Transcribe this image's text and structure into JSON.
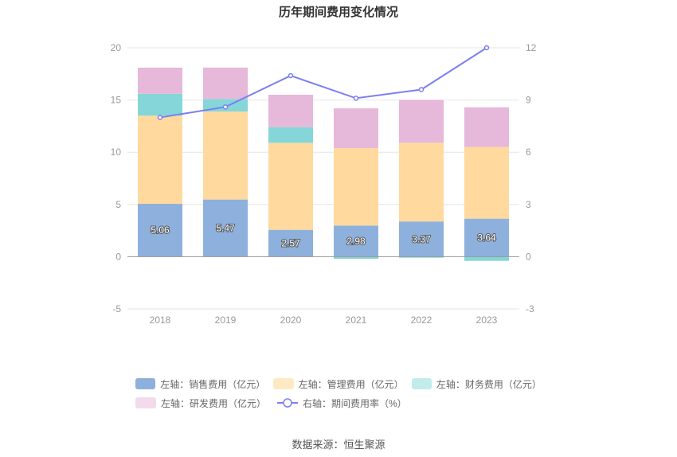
{
  "chart_data": {
    "type": "bar",
    "title": "历年期间费用变化情况",
    "categories": [
      "2018",
      "2019",
      "2020",
      "2021",
      "2022",
      "2023"
    ],
    "left_axis": {
      "ylim": [
        -5,
        20
      ],
      "ticks": [
        "-5",
        "0",
        "5",
        "10",
        "15",
        "20"
      ]
    },
    "right_axis": {
      "ylim": [
        -3,
        12
      ],
      "ticks": [
        "-3",
        "0",
        "3",
        "6",
        "9",
        "12"
      ]
    },
    "series": [
      {
        "name": "左轴：销售费用（亿元）",
        "axis": "left",
        "color": "#8eb0dd",
        "values": [
          5.06,
          5.47,
          2.57,
          2.98,
          3.37,
          3.64
        ],
        "labels": [
          "5.06",
          "5.47",
          "2.57",
          "2.98",
          "3.37",
          "3.64"
        ]
      },
      {
        "name": "左轴：管理费用（亿元）",
        "axis": "left",
        "color": "#ffd99e",
        "values": [
          8.44,
          8.43,
          8.33,
          7.42,
          7.53,
          6.86
        ]
      },
      {
        "name": "左轴：财务费用（亿元）",
        "axis": "left",
        "color": "#85d6d8",
        "values": [
          2.1,
          1.2,
          1.5,
          -0.2,
          -0.1,
          -0.4
        ]
      },
      {
        "name": "左轴：研发费用（亿元）",
        "axis": "left",
        "color": "#e6b8d9",
        "values": [
          2.5,
          3.0,
          3.1,
          3.8,
          4.1,
          3.8
        ]
      },
      {
        "name": "右轴：期间费用率（%）",
        "axis": "right",
        "type": "line",
        "color": "#7b7ff0",
        "values": [
          8.0,
          8.6,
          10.4,
          9.1,
          9.6,
          12.0
        ]
      }
    ],
    "grid": true,
    "legend_position": "bottom"
  },
  "source": "数据来源：恒生聚源"
}
